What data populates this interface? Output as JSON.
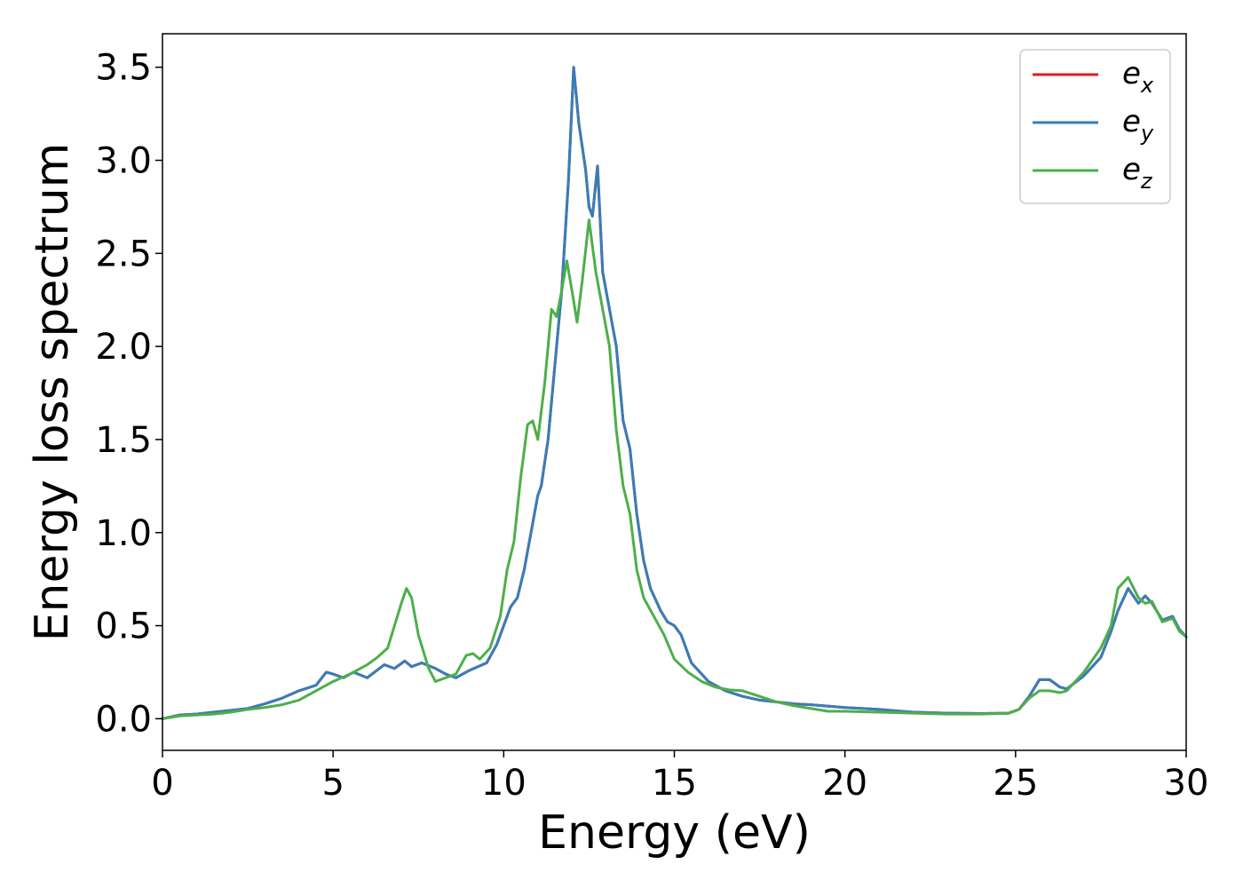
{
  "chart_data": {
    "type": "line",
    "title": "",
    "xlabel": "Energy (eV)",
    "ylabel": "Energy loss spectrum",
    "xlim": [
      0,
      30
    ],
    "ylim": [
      -0.17,
      3.68
    ],
    "xticks": [
      0,
      5,
      10,
      15,
      20,
      25,
      30
    ],
    "xtick_labels": [
      "0",
      "5",
      "10",
      "15",
      "20",
      "25",
      "30"
    ],
    "yticks": [
      0.0,
      0.5,
      1.0,
      1.5,
      2.0,
      2.5,
      3.0,
      3.5
    ],
    "ytick_labels": [
      "0.0",
      "0.5",
      "1.0",
      "1.5",
      "2.0",
      "2.5",
      "3.0",
      "3.5"
    ],
    "grid": false,
    "legend": {
      "position": "upper-right",
      "entries": [
        {
          "base": "e",
          "sub": "x",
          "color": "#e41a1c"
        },
        {
          "base": "e",
          "sub": "y",
          "color": "#377eb8"
        },
        {
          "base": "e",
          "sub": "z",
          "color": "#4daf4a"
        }
      ]
    },
    "series": [
      {
        "name": "e_x",
        "color": "#e41a1c",
        "points": [
          [
            0,
            0
          ],
          [
            0.5,
            0.02
          ],
          [
            1,
            0.025
          ],
          [
            1.5,
            0.035
          ],
          [
            2,
            0.045
          ],
          [
            2.5,
            0.055
          ],
          [
            3,
            0.08
          ],
          [
            3.5,
            0.11
          ],
          [
            4,
            0.15
          ],
          [
            4.5,
            0.18
          ],
          [
            4.8,
            0.25
          ],
          [
            5,
            0.24
          ],
          [
            5.3,
            0.22
          ],
          [
            5.6,
            0.25
          ],
          [
            6,
            0.22
          ],
          [
            6.5,
            0.29
          ],
          [
            6.8,
            0.27
          ],
          [
            7.1,
            0.31
          ],
          [
            7.3,
            0.28
          ],
          [
            7.6,
            0.3
          ],
          [
            8,
            0.27
          ],
          [
            8.3,
            0.24
          ],
          [
            8.6,
            0.22
          ],
          [
            9,
            0.26
          ],
          [
            9.5,
            0.3
          ],
          [
            9.8,
            0.4
          ],
          [
            10,
            0.5
          ],
          [
            10.2,
            0.6
          ],
          [
            10.4,
            0.65
          ],
          [
            10.6,
            0.8
          ],
          [
            10.8,
            1.0
          ],
          [
            11,
            1.2
          ],
          [
            11.1,
            1.25
          ],
          [
            11.3,
            1.5
          ],
          [
            11.5,
            1.9
          ],
          [
            11.7,
            2.3
          ],
          [
            11.9,
            2.9
          ],
          [
            12.05,
            3.5
          ],
          [
            12.2,
            3.2
          ],
          [
            12.4,
            2.95
          ],
          [
            12.5,
            2.75
          ],
          [
            12.6,
            2.7
          ],
          [
            12.75,
            2.97
          ],
          [
            12.9,
            2.4
          ],
          [
            13.1,
            2.2
          ],
          [
            13.3,
            2.0
          ],
          [
            13.5,
            1.6
          ],
          [
            13.7,
            1.45
          ],
          [
            13.9,
            1.1
          ],
          [
            14.1,
            0.85
          ],
          [
            14.3,
            0.7
          ],
          [
            14.6,
            0.58
          ],
          [
            14.8,
            0.52
          ],
          [
            15,
            0.5
          ],
          [
            15.2,
            0.45
          ],
          [
            15.5,
            0.3
          ],
          [
            16,
            0.2
          ],
          [
            16.5,
            0.15
          ],
          [
            17,
            0.12
          ],
          [
            17.5,
            0.1
          ],
          [
            18,
            0.09
          ],
          [
            18.5,
            0.08
          ],
          [
            19,
            0.075
          ],
          [
            20,
            0.06
          ],
          [
            21,
            0.05
          ],
          [
            22,
            0.035
          ],
          [
            23,
            0.03
          ],
          [
            24,
            0.028
          ],
          [
            24.8,
            0.03
          ],
          [
            25.1,
            0.05
          ],
          [
            25.4,
            0.12
          ],
          [
            25.7,
            0.21
          ],
          [
            26,
            0.21
          ],
          [
            26.3,
            0.17
          ],
          [
            26.5,
            0.16
          ],
          [
            27,
            0.23
          ],
          [
            27.5,
            0.33
          ],
          [
            27.8,
            0.47
          ],
          [
            28,
            0.58
          ],
          [
            28.3,
            0.7
          ],
          [
            28.6,
            0.62
          ],
          [
            28.8,
            0.66
          ],
          [
            29,
            0.62
          ],
          [
            29.3,
            0.53
          ],
          [
            29.6,
            0.55
          ],
          [
            29.8,
            0.48
          ],
          [
            30,
            0.44
          ]
        ]
      },
      {
        "name": "e_y",
        "color": "#377eb8",
        "points": [
          [
            0,
            0
          ],
          [
            0.5,
            0.02
          ],
          [
            1,
            0.025
          ],
          [
            1.5,
            0.035
          ],
          [
            2,
            0.045
          ],
          [
            2.5,
            0.055
          ],
          [
            3,
            0.08
          ],
          [
            3.5,
            0.11
          ],
          [
            4,
            0.15
          ],
          [
            4.5,
            0.18
          ],
          [
            4.8,
            0.25
          ],
          [
            5,
            0.24
          ],
          [
            5.3,
            0.22
          ],
          [
            5.6,
            0.25
          ],
          [
            6,
            0.22
          ],
          [
            6.5,
            0.29
          ],
          [
            6.8,
            0.27
          ],
          [
            7.1,
            0.31
          ],
          [
            7.3,
            0.28
          ],
          [
            7.6,
            0.3
          ],
          [
            8,
            0.27
          ],
          [
            8.3,
            0.24
          ],
          [
            8.6,
            0.22
          ],
          [
            9,
            0.26
          ],
          [
            9.5,
            0.3
          ],
          [
            9.8,
            0.4
          ],
          [
            10,
            0.5
          ],
          [
            10.2,
            0.6
          ],
          [
            10.4,
            0.65
          ],
          [
            10.6,
            0.8
          ],
          [
            10.8,
            1.0
          ],
          [
            11,
            1.2
          ],
          [
            11.1,
            1.25
          ],
          [
            11.3,
            1.5
          ],
          [
            11.5,
            1.9
          ],
          [
            11.7,
            2.3
          ],
          [
            11.9,
            2.9
          ],
          [
            12.05,
            3.5
          ],
          [
            12.2,
            3.2
          ],
          [
            12.4,
            2.95
          ],
          [
            12.5,
            2.75
          ],
          [
            12.6,
            2.7
          ],
          [
            12.75,
            2.97
          ],
          [
            12.9,
            2.4
          ],
          [
            13.1,
            2.2
          ],
          [
            13.3,
            2.0
          ],
          [
            13.5,
            1.6
          ],
          [
            13.7,
            1.45
          ],
          [
            13.9,
            1.1
          ],
          [
            14.1,
            0.85
          ],
          [
            14.3,
            0.7
          ],
          [
            14.6,
            0.58
          ],
          [
            14.8,
            0.52
          ],
          [
            15,
            0.5
          ],
          [
            15.2,
            0.45
          ],
          [
            15.5,
            0.3
          ],
          [
            16,
            0.2
          ],
          [
            16.5,
            0.15
          ],
          [
            17,
            0.12
          ],
          [
            17.5,
            0.1
          ],
          [
            18,
            0.09
          ],
          [
            18.5,
            0.08
          ],
          [
            19,
            0.075
          ],
          [
            20,
            0.06
          ],
          [
            21,
            0.05
          ],
          [
            22,
            0.035
          ],
          [
            23,
            0.03
          ],
          [
            24,
            0.028
          ],
          [
            24.8,
            0.03
          ],
          [
            25.1,
            0.05
          ],
          [
            25.4,
            0.12
          ],
          [
            25.7,
            0.21
          ],
          [
            26,
            0.21
          ],
          [
            26.3,
            0.17
          ],
          [
            26.5,
            0.16
          ],
          [
            27,
            0.23
          ],
          [
            27.5,
            0.33
          ],
          [
            27.8,
            0.47
          ],
          [
            28,
            0.58
          ],
          [
            28.3,
            0.7
          ],
          [
            28.6,
            0.62
          ],
          [
            28.8,
            0.66
          ],
          [
            29,
            0.62
          ],
          [
            29.3,
            0.53
          ],
          [
            29.6,
            0.55
          ],
          [
            29.8,
            0.48
          ],
          [
            30,
            0.44
          ]
        ]
      },
      {
        "name": "e_z",
        "color": "#4daf4a",
        "points": [
          [
            0,
            0
          ],
          [
            0.5,
            0.015
          ],
          [
            1,
            0.02
          ],
          [
            1.5,
            0.025
          ],
          [
            2,
            0.035
          ],
          [
            2.5,
            0.05
          ],
          [
            3,
            0.06
          ],
          [
            3.5,
            0.075
          ],
          [
            4,
            0.1
          ],
          [
            4.5,
            0.15
          ],
          [
            5,
            0.2
          ],
          [
            5.5,
            0.24
          ],
          [
            6,
            0.29
          ],
          [
            6.3,
            0.33
          ],
          [
            6.6,
            0.38
          ],
          [
            6.8,
            0.5
          ],
          [
            7,
            0.62
          ],
          [
            7.15,
            0.7
          ],
          [
            7.3,
            0.65
          ],
          [
            7.5,
            0.45
          ],
          [
            7.8,
            0.27
          ],
          [
            8,
            0.2
          ],
          [
            8.3,
            0.22
          ],
          [
            8.6,
            0.24
          ],
          [
            8.9,
            0.34
          ],
          [
            9.1,
            0.35
          ],
          [
            9.3,
            0.32
          ],
          [
            9.6,
            0.38
          ],
          [
            9.9,
            0.55
          ],
          [
            10.1,
            0.8
          ],
          [
            10.3,
            0.95
          ],
          [
            10.5,
            1.3
          ],
          [
            10.7,
            1.58
          ],
          [
            10.85,
            1.6
          ],
          [
            11,
            1.5
          ],
          [
            11.2,
            1.8
          ],
          [
            11.4,
            2.2
          ],
          [
            11.55,
            2.16
          ],
          [
            11.7,
            2.3
          ],
          [
            11.85,
            2.46
          ],
          [
            12,
            2.3
          ],
          [
            12.15,
            2.13
          ],
          [
            12.3,
            2.35
          ],
          [
            12.5,
            2.68
          ],
          [
            12.7,
            2.4
          ],
          [
            12.9,
            2.2
          ],
          [
            13.1,
            2.0
          ],
          [
            13.3,
            1.55
          ],
          [
            13.5,
            1.25
          ],
          [
            13.7,
            1.1
          ],
          [
            13.9,
            0.8
          ],
          [
            14.1,
            0.65
          ],
          [
            14.4,
            0.55
          ],
          [
            14.7,
            0.45
          ],
          [
            15,
            0.32
          ],
          [
            15.4,
            0.25
          ],
          [
            15.8,
            0.2
          ],
          [
            16.2,
            0.17
          ],
          [
            16.6,
            0.155
          ],
          [
            17,
            0.15
          ],
          [
            17.5,
            0.12
          ],
          [
            18,
            0.09
          ],
          [
            18.5,
            0.07
          ],
          [
            19,
            0.055
          ],
          [
            19.5,
            0.04
          ],
          [
            20,
            0.04
          ],
          [
            21,
            0.035
          ],
          [
            22,
            0.03
          ],
          [
            23,
            0.025
          ],
          [
            24,
            0.025
          ],
          [
            24.8,
            0.03
          ],
          [
            25.1,
            0.05
          ],
          [
            25.4,
            0.11
          ],
          [
            25.7,
            0.15
          ],
          [
            26,
            0.15
          ],
          [
            26.3,
            0.14
          ],
          [
            26.5,
            0.15
          ],
          [
            27,
            0.25
          ],
          [
            27.5,
            0.38
          ],
          [
            27.8,
            0.5
          ],
          [
            28,
            0.7
          ],
          [
            28.3,
            0.76
          ],
          [
            28.6,
            0.65
          ],
          [
            28.8,
            0.62
          ],
          [
            29,
            0.63
          ],
          [
            29.3,
            0.52
          ],
          [
            29.6,
            0.54
          ],
          [
            29.8,
            0.47
          ],
          [
            30,
            0.44
          ]
        ]
      }
    ]
  }
}
